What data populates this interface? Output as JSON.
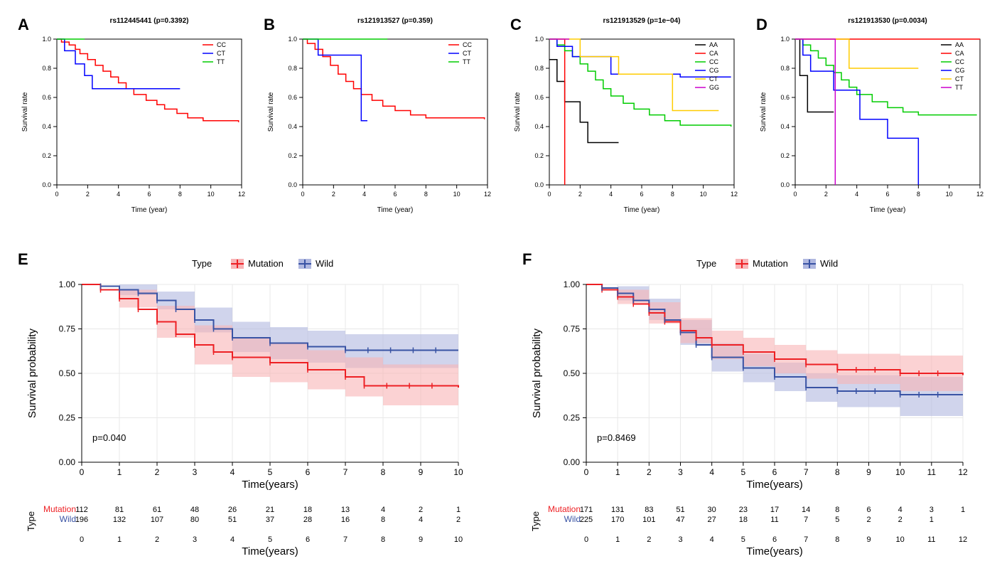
{
  "panelA": {
    "label": "A",
    "title": "rs112445441 (p=0.3392)",
    "xlabel": "Time (year)",
    "ylabel": "Survival rate",
    "xlim": [
      0,
      12
    ],
    "xticks": [
      0,
      2,
      4,
      6,
      8,
      10,
      12
    ],
    "ylim": [
      0,
      1
    ],
    "yticks": [
      0.0,
      0.2,
      0.4,
      0.6,
      0.8,
      1.0
    ],
    "legend": [
      "CC",
      "CT",
      "TT"
    ],
    "colors": [
      "#ff0000",
      "#0000ff",
      "#00cc00"
    ],
    "series": [
      [
        [
          0,
          1.0
        ],
        [
          0.3,
          0.98
        ],
        [
          0.8,
          0.96
        ],
        [
          1.2,
          0.93
        ],
        [
          1.5,
          0.9
        ],
        [
          2,
          0.86
        ],
        [
          2.5,
          0.82
        ],
        [
          3,
          0.78
        ],
        [
          3.5,
          0.74
        ],
        [
          4,
          0.7
        ],
        [
          4.5,
          0.66
        ],
        [
          5,
          0.62
        ],
        [
          5.8,
          0.58
        ],
        [
          6.5,
          0.55
        ],
        [
          7,
          0.52
        ],
        [
          7.8,
          0.49
        ],
        [
          8.5,
          0.46
        ],
        [
          9.5,
          0.44
        ],
        [
          11.8,
          0.43
        ]
      ],
      [
        [
          0,
          1.0
        ],
        [
          0.5,
          0.92
        ],
        [
          1.2,
          0.83
        ],
        [
          1.8,
          0.75
        ],
        [
          2.3,
          0.66
        ],
        [
          8,
          0.66
        ]
      ],
      [
        [
          0,
          1.0
        ],
        [
          1.8,
          1.0
        ]
      ]
    ]
  },
  "panelB": {
    "label": "B",
    "title": "rs121913527 (p=0.359)",
    "xlabel": "Time (year)",
    "ylabel": "Survival rate",
    "xlim": [
      0,
      12
    ],
    "xticks": [
      0,
      2,
      4,
      6,
      8,
      10,
      12
    ],
    "ylim": [
      0,
      1
    ],
    "yticks": [
      0.0,
      0.2,
      0.4,
      0.6,
      0.8,
      1.0
    ],
    "legend": [
      "CC",
      "CT",
      "TT"
    ],
    "colors": [
      "#ff0000",
      "#0000ff",
      "#00cc00"
    ],
    "series": [
      [
        [
          0,
          1.0
        ],
        [
          0.3,
          0.97
        ],
        [
          0.8,
          0.93
        ],
        [
          1.3,
          0.88
        ],
        [
          1.8,
          0.82
        ],
        [
          2.3,
          0.76
        ],
        [
          2.8,
          0.71
        ],
        [
          3.3,
          0.66
        ],
        [
          3.8,
          0.62
        ],
        [
          4.5,
          0.58
        ],
        [
          5.2,
          0.54
        ],
        [
          6,
          0.51
        ],
        [
          7,
          0.48
        ],
        [
          8,
          0.46
        ],
        [
          11.8,
          0.45
        ]
      ],
      [
        [
          0,
          1.0
        ],
        [
          1,
          0.89
        ],
        [
          3.8,
          0.89
        ],
        [
          3.8,
          0.44
        ],
        [
          4.2,
          0.44
        ]
      ],
      [
        [
          0,
          1.0
        ],
        [
          5.5,
          1.0
        ]
      ]
    ]
  },
  "panelC": {
    "label": "C",
    "title": "rs121913529 (p=1e−04)",
    "xlabel": "Time (year)",
    "ylabel": "Survival rate",
    "xlim": [
      0,
      12
    ],
    "xticks": [
      0,
      2,
      4,
      6,
      8,
      10,
      12
    ],
    "ylim": [
      0,
      1
    ],
    "yticks": [
      0.0,
      0.2,
      0.4,
      0.6,
      0.8,
      1.0
    ],
    "legend": [
      "AA",
      "CA",
      "CC",
      "CG",
      "CT",
      "GG"
    ],
    "colors": [
      "#000000",
      "#ff0000",
      "#00cc00",
      "#0000ff",
      "#ffcc00",
      "#cc00cc"
    ],
    "series": [
      [
        [
          0,
          0.86
        ],
        [
          0.5,
          0.71
        ],
        [
          1,
          0.57
        ],
        [
          2,
          0.43
        ],
        [
          2.5,
          0.29
        ],
        [
          4.5,
          0.29
        ]
      ],
      [
        [
          0,
          1.0
        ],
        [
          1,
          1.0
        ],
        [
          1,
          0.0
        ]
      ],
      [
        [
          0,
          1.0
        ],
        [
          0.5,
          0.96
        ],
        [
          1,
          0.92
        ],
        [
          1.5,
          0.88
        ],
        [
          2,
          0.83
        ],
        [
          2.5,
          0.78
        ],
        [
          3,
          0.72
        ],
        [
          3.5,
          0.66
        ],
        [
          4,
          0.61
        ],
        [
          4.8,
          0.56
        ],
        [
          5.5,
          0.52
        ],
        [
          6.5,
          0.48
        ],
        [
          7.5,
          0.44
        ],
        [
          8.5,
          0.41
        ],
        [
          11.8,
          0.4
        ]
      ],
      [
        [
          0,
          1.0
        ],
        [
          0.5,
          0.95
        ],
        [
          1.5,
          0.88
        ],
        [
          4,
          0.88
        ],
        [
          4,
          0.76
        ],
        [
          8.5,
          0.76
        ],
        [
          8.5,
          0.74
        ],
        [
          11.8,
          0.74
        ]
      ],
      [
        [
          0,
          1.0
        ],
        [
          2,
          1.0
        ],
        [
          2,
          0.88
        ],
        [
          4.5,
          0.88
        ],
        [
          4.5,
          0.76
        ],
        [
          8,
          0.76
        ],
        [
          8,
          0.51
        ],
        [
          11,
          0.51
        ]
      ],
      [
        [
          0,
          1.0
        ],
        [
          1.3,
          1.0
        ]
      ]
    ]
  },
  "panelD": {
    "label": "D",
    "title": "rs121913530 (p=0.0034)",
    "xlabel": "Time (year)",
    "ylabel": "Survival rate",
    "xlim": [
      0,
      12
    ],
    "xticks": [
      0,
      2,
      4,
      6,
      8,
      10,
      12
    ],
    "ylim": [
      0,
      1
    ],
    "yticks": [
      0.0,
      0.2,
      0.4,
      0.6,
      0.8,
      1.0
    ],
    "legend": [
      "AA",
      "CA",
      "CC",
      "CG",
      "CT",
      "TT"
    ],
    "colors": [
      "#000000",
      "#ff0000",
      "#00cc00",
      "#0000ff",
      "#ffcc00",
      "#cc00cc"
    ],
    "series": [
      [
        [
          0,
          1.0
        ],
        [
          0.3,
          0.75
        ],
        [
          0.8,
          0.5
        ],
        [
          2.5,
          0.5
        ]
      ],
      [
        [
          0,
          1.0
        ],
        [
          12,
          1.0
        ]
      ],
      [
        [
          0,
          1.0
        ],
        [
          0.5,
          0.96
        ],
        [
          1,
          0.92
        ],
        [
          1.5,
          0.87
        ],
        [
          2,
          0.82
        ],
        [
          2.5,
          0.77
        ],
        [
          3,
          0.72
        ],
        [
          3.5,
          0.67
        ],
        [
          4,
          0.62
        ],
        [
          5,
          0.57
        ],
        [
          6,
          0.53
        ],
        [
          7,
          0.5
        ],
        [
          8,
          0.48
        ],
        [
          11.8,
          0.48
        ]
      ],
      [
        [
          0,
          1.0
        ],
        [
          0.5,
          0.89
        ],
        [
          1,
          0.78
        ],
        [
          2.5,
          0.78
        ],
        [
          2.5,
          0.65
        ],
        [
          4.2,
          0.65
        ],
        [
          4.2,
          0.45
        ],
        [
          6,
          0.45
        ],
        [
          6,
          0.32
        ],
        [
          8,
          0.32
        ],
        [
          8,
          0.0
        ]
      ],
      [
        [
          0,
          1.0
        ],
        [
          3.5,
          1.0
        ],
        [
          3.5,
          0.8
        ],
        [
          8,
          0.8
        ]
      ],
      [
        [
          0,
          1.0
        ],
        [
          2.6,
          1.0
        ],
        [
          2.6,
          0.0
        ]
      ]
    ]
  },
  "panelE": {
    "label": "E",
    "legend_title": "Type",
    "legend": [
      "Mutation",
      "Wild"
    ],
    "colors": [
      "#ed2024",
      "#3953a4"
    ],
    "ci_colors": [
      "#f8b4b6",
      "#b0b8e0"
    ],
    "xlabel": "Time(years)",
    "ylabel": "Survival probability",
    "xlim": [
      0,
      10
    ],
    "xticks": [
      0,
      1,
      2,
      3,
      4,
      5,
      6,
      7,
      8,
      9,
      10
    ],
    "ylim": [
      0,
      1
    ],
    "yticks": [
      0.0,
      0.25,
      0.5,
      0.75,
      1.0
    ],
    "ytick_labels": [
      "0.00",
      "0.25",
      "0.50",
      "0.75",
      "1.00"
    ],
    "pvalue": "p=0.040",
    "mutation": [
      [
        0,
        1.0
      ],
      [
        0.5,
        0.97
      ],
      [
        1,
        0.92
      ],
      [
        1.5,
        0.86
      ],
      [
        2,
        0.79
      ],
      [
        2.5,
        0.72
      ],
      [
        3,
        0.66
      ],
      [
        3.5,
        0.62
      ],
      [
        4,
        0.59
      ],
      [
        5,
        0.56
      ],
      [
        6,
        0.52
      ],
      [
        7,
        0.48
      ],
      [
        7.5,
        0.43
      ],
      [
        10,
        0.42
      ]
    ],
    "mutation_ci_hi": [
      [
        0,
        1.0
      ],
      [
        1,
        0.97
      ],
      [
        2,
        0.88
      ],
      [
        3,
        0.77
      ],
      [
        4,
        0.7
      ],
      [
        5,
        0.67
      ],
      [
        6,
        0.63
      ],
      [
        7,
        0.59
      ],
      [
        8,
        0.55
      ],
      [
        10,
        0.55
      ]
    ],
    "mutation_ci_lo": [
      [
        0,
        1.0
      ],
      [
        1,
        0.87
      ],
      [
        2,
        0.7
      ],
      [
        3,
        0.55
      ],
      [
        4,
        0.48
      ],
      [
        5,
        0.45
      ],
      [
        6,
        0.41
      ],
      [
        7,
        0.37
      ],
      [
        8,
        0.32
      ],
      [
        10,
        0.3
      ]
    ],
    "wild": [
      [
        0,
        1.0
      ],
      [
        0.5,
        0.99
      ],
      [
        1,
        0.97
      ],
      [
        1.5,
        0.95
      ],
      [
        2,
        0.91
      ],
      [
        2.5,
        0.86
      ],
      [
        3,
        0.8
      ],
      [
        3.5,
        0.75
      ],
      [
        4,
        0.7
      ],
      [
        5,
        0.67
      ],
      [
        6,
        0.65
      ],
      [
        7,
        0.63
      ],
      [
        10,
        0.63
      ]
    ],
    "wild_ci_hi": [
      [
        0,
        1.0
      ],
      [
        1,
        1.0
      ],
      [
        2,
        0.96
      ],
      [
        3,
        0.87
      ],
      [
        4,
        0.79
      ],
      [
        5,
        0.76
      ],
      [
        6,
        0.74
      ],
      [
        7,
        0.72
      ],
      [
        10,
        0.72
      ]
    ],
    "wild_ci_lo": [
      [
        0,
        1.0
      ],
      [
        1,
        0.94
      ],
      [
        2,
        0.86
      ],
      [
        3,
        0.73
      ],
      [
        4,
        0.62
      ],
      [
        5,
        0.58
      ],
      [
        6,
        0.56
      ],
      [
        7,
        0.53
      ],
      [
        10,
        0.53
      ]
    ],
    "risk_title": "Type",
    "risk_rows": [
      {
        "label": "Mutation",
        "color": "#ed2024",
        "values": [
          112,
          81,
          61,
          48,
          26,
          21,
          18,
          13,
          4,
          2,
          1
        ]
      },
      {
        "label": "Wild",
        "color": "#3953a4",
        "values": [
          196,
          132,
          107,
          80,
          51,
          37,
          28,
          16,
          8,
          4,
          2
        ]
      }
    ]
  },
  "panelF": {
    "label": "F",
    "legend_title": "Type",
    "legend": [
      "Mutation",
      "Wild"
    ],
    "colors": [
      "#ed2024",
      "#3953a4"
    ],
    "ci_colors": [
      "#f8b4b6",
      "#b0b8e0"
    ],
    "xlabel": "Time(years)",
    "ylabel": "Survival probability",
    "xlim": [
      0,
      12
    ],
    "xticks": [
      0,
      1,
      2,
      3,
      4,
      5,
      6,
      7,
      8,
      9,
      10,
      11,
      12
    ],
    "ylim": [
      0,
      1
    ],
    "yticks": [
      0.0,
      0.25,
      0.5,
      0.75,
      1.0
    ],
    "ytick_labels": [
      "0.00",
      "0.25",
      "0.50",
      "0.75",
      "1.00"
    ],
    "pvalue": "p=0.8469",
    "mutation": [
      [
        0,
        1.0
      ],
      [
        0.5,
        0.97
      ],
      [
        1,
        0.93
      ],
      [
        1.5,
        0.89
      ],
      [
        2,
        0.84
      ],
      [
        2.5,
        0.79
      ],
      [
        3,
        0.74
      ],
      [
        3.5,
        0.7
      ],
      [
        4,
        0.66
      ],
      [
        5,
        0.62
      ],
      [
        6,
        0.58
      ],
      [
        7,
        0.55
      ],
      [
        8,
        0.52
      ],
      [
        10,
        0.5
      ],
      [
        12,
        0.49
      ]
    ],
    "mutation_ci_hi": [
      [
        0,
        1.0
      ],
      [
        1,
        0.97
      ],
      [
        2,
        0.9
      ],
      [
        3,
        0.81
      ],
      [
        4,
        0.74
      ],
      [
        5,
        0.7
      ],
      [
        6,
        0.66
      ],
      [
        7,
        0.63
      ],
      [
        8,
        0.61
      ],
      [
        10,
        0.6
      ],
      [
        12,
        0.6
      ]
    ],
    "mutation_ci_lo": [
      [
        0,
        1.0
      ],
      [
        1,
        0.89
      ],
      [
        2,
        0.78
      ],
      [
        3,
        0.67
      ],
      [
        4,
        0.58
      ],
      [
        5,
        0.54
      ],
      [
        6,
        0.5
      ],
      [
        7,
        0.47
      ],
      [
        8,
        0.44
      ],
      [
        10,
        0.4
      ],
      [
        12,
        0.38
      ]
    ],
    "wild": [
      [
        0,
        1.0
      ],
      [
        0.5,
        0.98
      ],
      [
        1,
        0.95
      ],
      [
        1.5,
        0.91
      ],
      [
        2,
        0.86
      ],
      [
        2.5,
        0.8
      ],
      [
        3,
        0.73
      ],
      [
        3.5,
        0.66
      ],
      [
        4,
        0.59
      ],
      [
        5,
        0.53
      ],
      [
        6,
        0.48
      ],
      [
        7,
        0.42
      ],
      [
        8,
        0.4
      ],
      [
        10,
        0.38
      ],
      [
        12,
        0.38
      ]
    ],
    "wild_ci_hi": [
      [
        0,
        1.0
      ],
      [
        1,
        0.99
      ],
      [
        2,
        0.92
      ],
      [
        3,
        0.8
      ],
      [
        4,
        0.67
      ],
      [
        5,
        0.61
      ],
      [
        6,
        0.56
      ],
      [
        7,
        0.5
      ],
      [
        8,
        0.49
      ],
      [
        10,
        0.48
      ],
      [
        12,
        0.48
      ]
    ],
    "wild_ci_lo": [
      [
        0,
        1.0
      ],
      [
        1,
        0.91
      ],
      [
        2,
        0.8
      ],
      [
        3,
        0.66
      ],
      [
        4,
        0.51
      ],
      [
        5,
        0.45
      ],
      [
        6,
        0.4
      ],
      [
        7,
        0.34
      ],
      [
        8,
        0.31
      ],
      [
        10,
        0.26
      ],
      [
        12,
        0.24
      ]
    ],
    "risk_title": "Type",
    "risk_rows": [
      {
        "label": "Mutation",
        "color": "#ed2024",
        "values": [
          171,
          131,
          83,
          51,
          30,
          23,
          17,
          14,
          8,
          6,
          4,
          3,
          1
        ]
      },
      {
        "label": "Wild",
        "color": "#3953a4",
        "values": [
          225,
          170,
          101,
          47,
          27,
          18,
          11,
          7,
          5,
          2,
          2,
          1,
          null
        ]
      }
    ]
  }
}
